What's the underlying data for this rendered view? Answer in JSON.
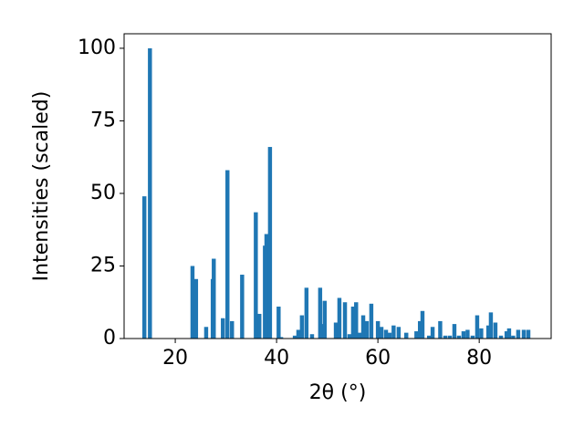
{
  "chart_data": {
    "type": "bar",
    "x_label": "2θ (°)",
    "y_label": "Intensities (scaled)",
    "color": "#1f77b4",
    "x": [
      13.9,
      15.0,
      23.4,
      24.1,
      26.1,
      27.4,
      27.6,
      29.4,
      30.3,
      31.2,
      33.2,
      35.9,
      36.6,
      37.7,
      38.0,
      38.7,
      40.4,
      40.9,
      43.6,
      44.3,
      45.0,
      45.9,
      47.0,
      48.6,
      49.0,
      49.5,
      51.7,
      52.4,
      53.5,
      54.4,
      55.1,
      55.7,
      56.4,
      57.1,
      57.8,
      58.7,
      60.0,
      60.7,
      61.6,
      62.3,
      63.1,
      64.1,
      65.6,
      67.6,
      68.3,
      68.8,
      70.1,
      70.8,
      72.3,
      73.3,
      74.2,
      75.1,
      76.0,
      76.9,
      77.7,
      78.7,
      79.6,
      80.4,
      81.8,
      82.3,
      83.2,
      84.3,
      85.4,
      85.9,
      86.7,
      87.7,
      88.8,
      89.7
    ],
    "values": [
      49,
      100,
      25,
      20.5,
      4,
      20.5,
      27.5,
      7,
      58,
      6,
      22,
      43.5,
      8.5,
      32,
      36,
      66,
      11,
      0.5,
      1,
      3,
      8,
      17.5,
      1.5,
      17.5,
      5,
      13,
      5.5,
      14,
      12.5,
      1.5,
      11,
      12.5,
      2,
      8,
      6,
      12,
      6,
      4,
      3,
      2,
      4.5,
      4,
      2,
      2.5,
      6,
      9.5,
      1,
      4,
      6,
      1,
      1,
      5,
      1,
      2.5,
      3,
      1,
      8,
      3.5,
      4.5,
      9,
      5.5,
      1,
      2.5,
      3.5,
      1,
      3,
      3,
      3
    ],
    "xlim": [
      9.9,
      94.2
    ],
    "xticks": [
      20,
      40,
      60,
      80
    ],
    "ylim": [
      0,
      105
    ],
    "yticks": [
      0,
      25,
      50,
      75,
      100
    ]
  }
}
